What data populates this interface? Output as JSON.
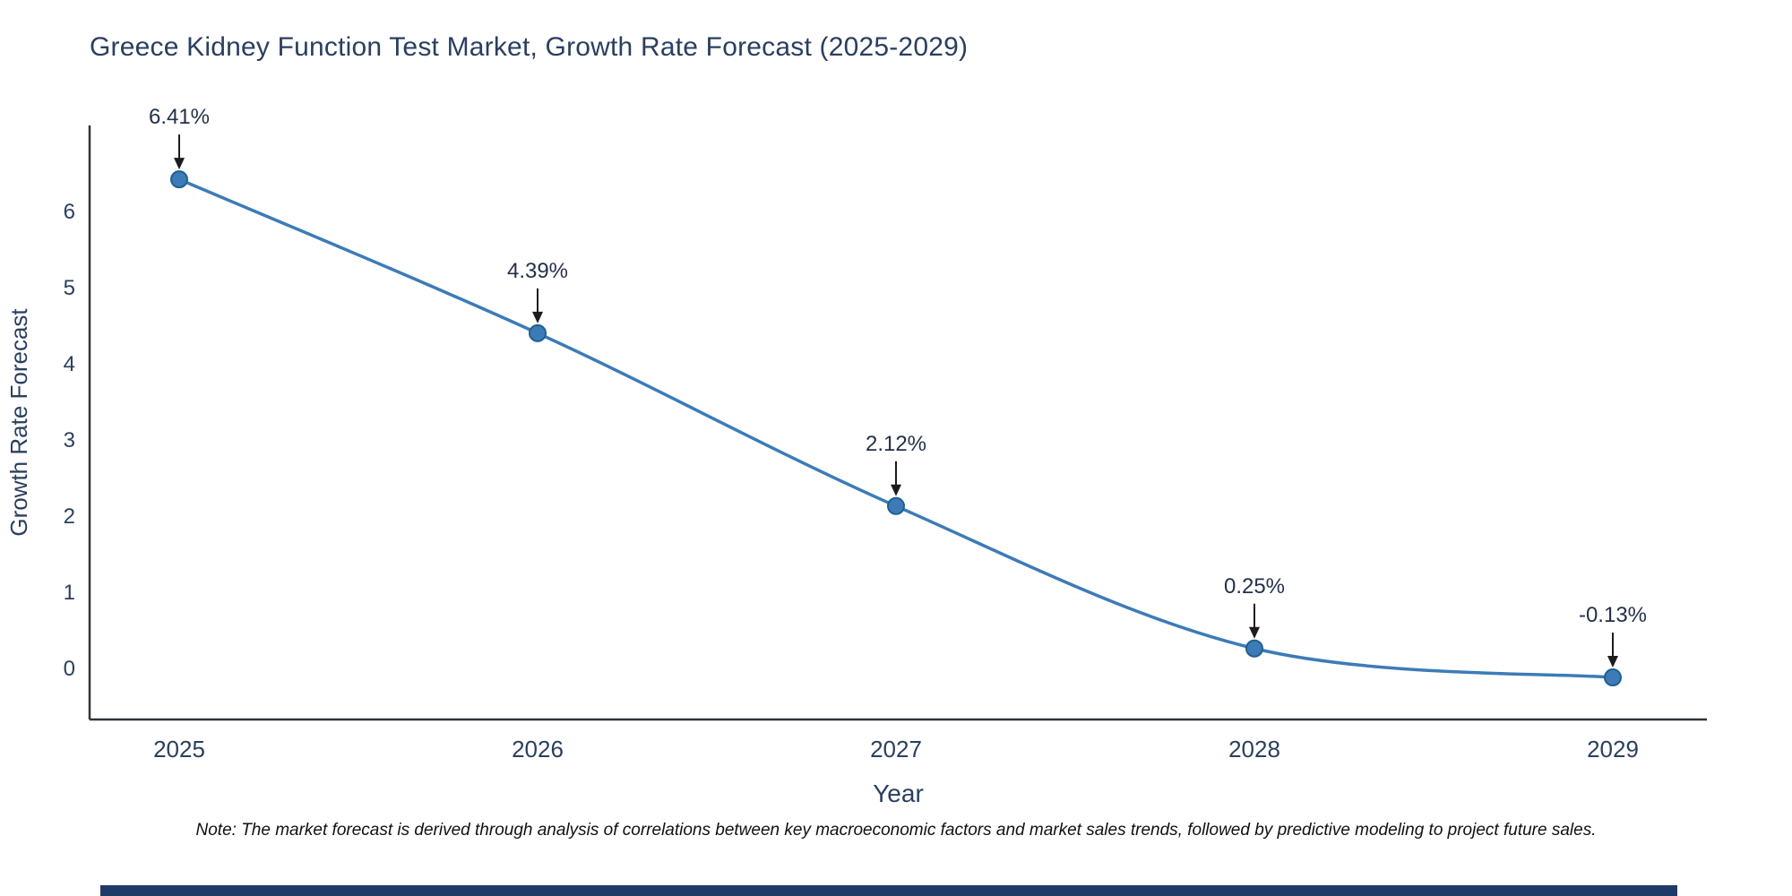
{
  "note": "Note: The market forecast is derived through analysis of correlations between key macroeconomic factors and market sales trends, followed by predictive modeling to project future sales.",
  "chart_data": {
    "type": "line",
    "title": "Greece Kidney Function Test Market, Growth Rate Forecast (2025-2029)",
    "xlabel": "Year",
    "ylabel": "Growth Rate Forecast",
    "categories": [
      "2025",
      "2026",
      "2027",
      "2028",
      "2029"
    ],
    "values": [
      6.41,
      4.39,
      2.12,
      0.25,
      -0.13
    ],
    "labels": [
      "6.41%",
      "4.39%",
      "2.12%",
      "0.25%",
      "-0.13%"
    ],
    "yticks": [
      0,
      1,
      2,
      3,
      4,
      5,
      6
    ],
    "ylim": [
      -0.7,
      7.1
    ],
    "grid": false,
    "legend": "none",
    "smooth": true,
    "line_color": "#3c7bb7",
    "marker_edge_color": "#20608f",
    "axis_color": "#30343a",
    "text_color": "#2a3f5f",
    "annotation_color": "#25304a",
    "arrow_color": "#1c1c1c",
    "footer_bar_color": "#1e3a66"
  }
}
